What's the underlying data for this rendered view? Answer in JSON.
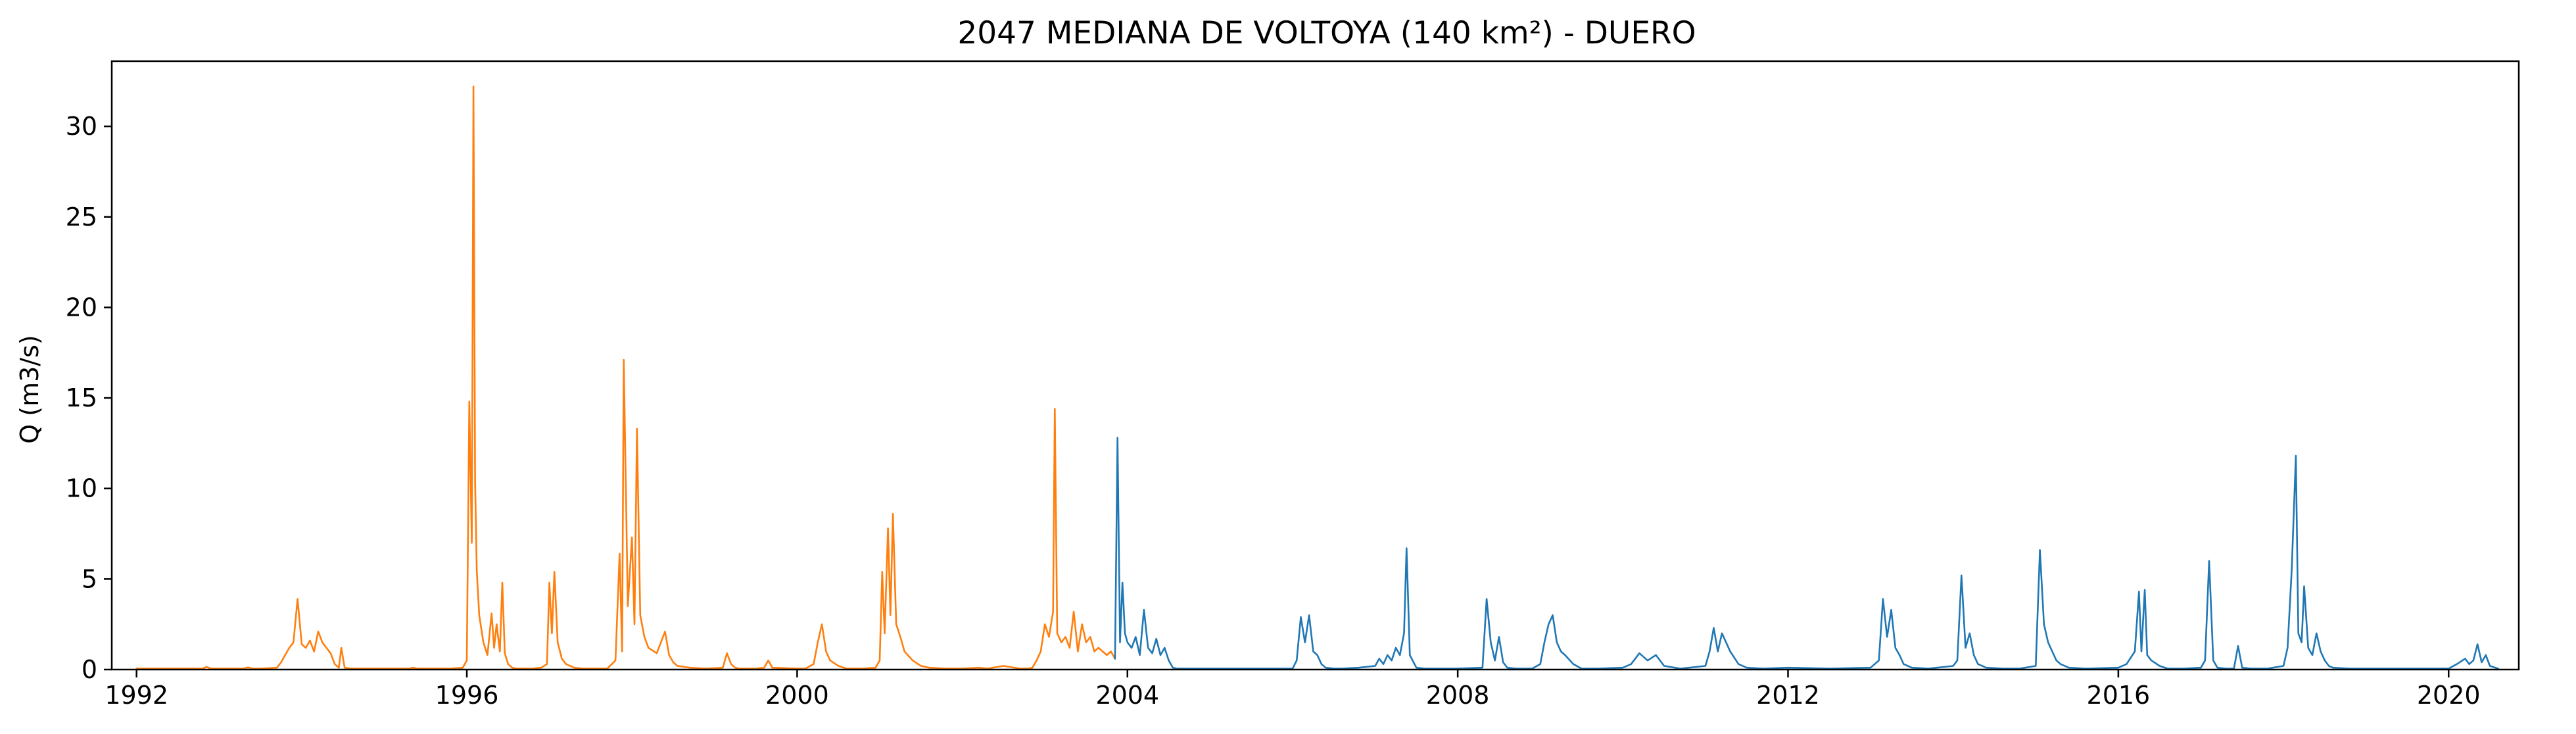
{
  "chart_data": {
    "type": "line",
    "title": "2047 MEDIANA DE VOLTOYA (140 km²) - DUERO",
    "xlabel": "",
    "ylabel": "Q (m3/s)",
    "xlim": [
      1991.7,
      2020.85
    ],
    "ylim": [
      0,
      33.6
    ],
    "x_ticks": [
      1992,
      1996,
      2000,
      2004,
      2008,
      2012,
      2016,
      2020
    ],
    "x_tick_labels": [
      "1992",
      "1996",
      "2000",
      "2004",
      "2008",
      "2012",
      "2016",
      "2020"
    ],
    "y_ticks": [
      0,
      5,
      10,
      15,
      20,
      25,
      30
    ],
    "y_tick_labels": [
      "0",
      "5",
      "10",
      "15",
      "20",
      "25",
      "30"
    ],
    "grid": false,
    "legend": "none",
    "series": [
      {
        "color": "#ff7f0e",
        "x": [
          1992.0,
          1992.8,
          1992.85,
          1992.9,
          1993.3,
          1993.35,
          1993.4,
          1993.5,
          1993.7,
          1993.75,
          1993.85,
          1993.9,
          1993.95,
          1994.0,
          1994.05,
          1994.1,
          1994.15,
          1994.2,
          1994.25,
          1994.3,
          1994.35,
          1994.4,
          1994.45,
          1994.48,
          1994.52,
          1994.6,
          1995.3,
          1995.35,
          1995.4,
          1995.8,
          1995.95,
          1996.0,
          1996.03,
          1996.06,
          1996.08,
          1996.1,
          1996.12,
          1996.15,
          1996.2,
          1996.25,
          1996.3,
          1996.33,
          1996.36,
          1996.4,
          1996.43,
          1996.46,
          1996.5,
          1996.55,
          1996.6,
          1996.7,
          1996.8,
          1996.9,
          1996.97,
          1997.0,
          1997.03,
          1997.06,
          1997.1,
          1997.15,
          1997.2,
          1997.3,
          1997.4,
          1997.7,
          1997.8,
          1997.85,
          1997.88,
          1997.9,
          1997.95,
          1998.0,
          1998.03,
          1998.06,
          1998.1,
          1998.15,
          1998.2,
          1998.3,
          1998.35,
          1998.4,
          1998.45,
          1998.5,
          1998.55,
          1998.7,
          1998.9,
          1999.1,
          1999.15,
          1999.2,
          1999.25,
          1999.3,
          1999.5,
          1999.6,
          1999.65,
          1999.7,
          2000.0,
          2000.1,
          2000.2,
          2000.25,
          2000.3,
          2000.35,
          2000.4,
          2000.5,
          2000.6,
          2000.8,
          2000.95,
          2001.0,
          2001.03,
          2001.06,
          2001.1,
          2001.13,
          2001.16,
          2001.2,
          2001.25,
          2001.3,
          2001.4,
          2001.5,
          2001.6,
          2001.8,
          2002.0,
          2002.2,
          2002.3,
          2002.5,
          2002.7,
          2002.8,
          2002.85,
          2002.9,
          2002.95,
          2003.0,
          2003.05,
          2003.1,
          2003.12,
          2003.15,
          2003.2,
          2003.25,
          2003.3,
          2003.35,
          2003.4,
          2003.45,
          2003.5,
          2003.55,
          2003.6,
          2003.65,
          2003.7,
          2003.75,
          2003.8,
          2003.85
        ],
        "y": [
          0.05,
          0.05,
          0.15,
          0.05,
          0.05,
          0.12,
          0.05,
          0.05,
          0.1,
          0.4,
          1.2,
          1.5,
          3.9,
          1.4,
          1.2,
          1.6,
          1.0,
          2.1,
          1.5,
          1.2,
          0.9,
          0.3,
          0.1,
          1.2,
          0.1,
          0.05,
          0.05,
          0.1,
          0.05,
          0.05,
          0.1,
          0.5,
          14.8,
          7.0,
          32.2,
          10.5,
          5.5,
          3.0,
          1.5,
          0.8,
          3.1,
          1.2,
          2.5,
          1.0,
          4.8,
          0.9,
          0.3,
          0.1,
          0.05,
          0.05,
          0.05,
          0.1,
          0.3,
          4.8,
          2.0,
          5.4,
          1.5,
          0.6,
          0.3,
          0.1,
          0.05,
          0.05,
          0.5,
          6.4,
          1.0,
          17.1,
          3.5,
          7.3,
          2.5,
          13.3,
          3.0,
          1.8,
          1.2,
          0.9,
          1.5,
          2.1,
          0.8,
          0.4,
          0.2,
          0.1,
          0.05,
          0.1,
          0.9,
          0.3,
          0.1,
          0.05,
          0.05,
          0.1,
          0.5,
          0.1,
          0.05,
          0.05,
          0.3,
          1.5,
          2.5,
          1.0,
          0.5,
          0.2,
          0.05,
          0.05,
          0.1,
          0.5,
          5.4,
          2.0,
          7.8,
          3.0,
          8.6,
          2.5,
          1.8,
          1.0,
          0.5,
          0.2,
          0.1,
          0.05,
          0.05,
          0.1,
          0.05,
          0.2,
          0.05,
          0.05,
          0.1,
          0.5,
          1.0,
          2.5,
          1.8,
          3.2,
          14.4,
          2.0,
          1.5,
          1.8,
          1.2,
          3.2,
          1.0,
          2.5,
          1.5,
          1.8,
          1.0,
          1.2,
          1.0,
          0.8,
          1.0,
          0.6
        ]
      },
      {
        "color": "#1f77b4",
        "x": [
          2003.85,
          2003.88,
          2003.91,
          2003.94,
          2003.97,
          2004.0,
          2004.05,
          2004.1,
          2004.15,
          2004.2,
          2004.25,
          2004.3,
          2004.35,
          2004.4,
          2004.45,
          2004.5,
          2004.55,
          2004.6,
          2005.0,
          2005.5,
          2006.0,
          2006.05,
          2006.1,
          2006.15,
          2006.2,
          2006.25,
          2006.3,
          2006.35,
          2006.4,
          2006.5,
          2006.6,
          2006.8,
          2007.0,
          2007.05,
          2007.1,
          2007.15,
          2007.2,
          2007.25,
          2007.3,
          2007.35,
          2007.38,
          2007.42,
          2007.5,
          2007.6,
          2008.0,
          2008.3,
          2008.35,
          2008.4,
          2008.45,
          2008.5,
          2008.55,
          2008.6,
          2008.7,
          2008.9,
          2009.0,
          2009.05,
          2009.1,
          2009.15,
          2009.2,
          2009.25,
          2009.3,
          2009.4,
          2009.5,
          2009.7,
          2010.0,
          2010.1,
          2010.2,
          2010.3,
          2010.4,
          2010.5,
          2010.7,
          2011.0,
          2011.05,
          2011.1,
          2011.15,
          2011.2,
          2011.25,
          2011.3,
          2011.4,
          2011.5,
          2011.7,
          2012.0,
          2012.5,
          2013.0,
          2013.1,
          2013.15,
          2013.2,
          2013.25,
          2013.3,
          2013.35,
          2013.4,
          2013.5,
          2013.7,
          2014.0,
          2014.05,
          2014.1,
          2014.15,
          2014.2,
          2014.25,
          2014.3,
          2014.4,
          2014.6,
          2014.8,
          2015.0,
          2015.05,
          2015.1,
          2015.15,
          2015.2,
          2015.25,
          2015.3,
          2015.4,
          2015.6,
          2016.0,
          2016.1,
          2016.2,
          2016.25,
          2016.28,
          2016.32,
          2016.35,
          2016.4,
          2016.5,
          2016.6,
          2016.8,
          2017.0,
          2017.05,
          2017.1,
          2017.15,
          2017.2,
          2017.3,
          2017.4,
          2017.45,
          2017.5,
          2017.6,
          2017.8,
          2018.0,
          2018.05,
          2018.1,
          2018.15,
          2018.18,
          2018.22,
          2018.25,
          2018.3,
          2018.35,
          2018.4,
          2018.45,
          2018.5,
          2018.55,
          2018.6,
          2018.8,
          2019.0,
          2019.5,
          2020.0,
          2020.1,
          2020.2,
          2020.25,
          2020.3,
          2020.35,
          2020.4,
          2020.45,
          2020.5,
          2020.6
        ],
        "y": [
          0.6,
          12.8,
          1.5,
          4.8,
          2.0,
          1.5,
          1.2,
          1.8,
          0.8,
          3.3,
          1.2,
          0.9,
          1.7,
          0.8,
          1.2,
          0.5,
          0.1,
          0.05,
          0.05,
          0.05,
          0.05,
          0.5,
          2.9,
          1.5,
          3.0,
          1.0,
          0.8,
          0.3,
          0.1,
          0.05,
          0.05,
          0.1,
          0.2,
          0.6,
          0.3,
          0.8,
          0.5,
          1.2,
          0.8,
          2.0,
          6.7,
          0.8,
          0.1,
          0.05,
          0.05,
          0.1,
          3.9,
          1.5,
          0.5,
          1.8,
          0.4,
          0.1,
          0.05,
          0.05,
          0.3,
          1.5,
          2.5,
          3.0,
          1.5,
          1.0,
          0.8,
          0.3,
          0.05,
          0.05,
          0.1,
          0.3,
          0.9,
          0.5,
          0.8,
          0.2,
          0.05,
          0.2,
          1.0,
          2.3,
          1.0,
          2.0,
          1.5,
          1.0,
          0.3,
          0.1,
          0.05,
          0.1,
          0.05,
          0.1,
          0.5,
          3.9,
          1.8,
          3.3,
          1.2,
          0.8,
          0.3,
          0.1,
          0.05,
          0.2,
          0.5,
          5.2,
          1.2,
          2.0,
          0.8,
          0.3,
          0.1,
          0.05,
          0.05,
          0.2,
          6.6,
          2.5,
          1.5,
          1.0,
          0.5,
          0.3,
          0.1,
          0.05,
          0.1,
          0.3,
          1.0,
          4.3,
          1.0,
          4.4,
          0.8,
          0.5,
          0.2,
          0.05,
          0.05,
          0.1,
          0.5,
          6.0,
          0.5,
          0.1,
          0.05,
          0.05,
          1.3,
          0.1,
          0.05,
          0.05,
          0.2,
          1.2,
          5.5,
          11.8,
          2.0,
          1.5,
          4.6,
          1.2,
          0.8,
          2.0,
          1.0,
          0.5,
          0.2,
          0.1,
          0.05,
          0.05,
          0.05,
          0.05,
          0.3,
          0.6,
          0.3,
          0.5,
          1.4,
          0.4,
          0.8,
          0.2,
          0.05
        ]
      }
    ]
  }
}
